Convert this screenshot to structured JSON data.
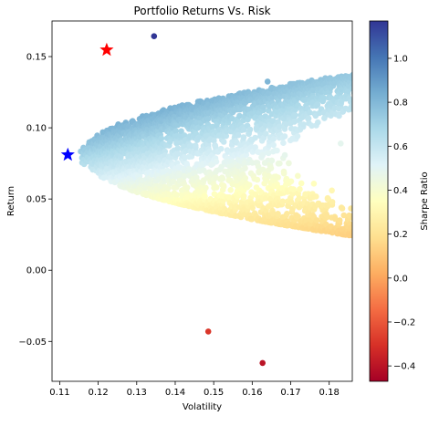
{
  "chart_data": {
    "type": "scatter",
    "title": "Portfolio Returns Vs. Risk",
    "xlabel": "Volatility",
    "ylabel": "Return",
    "xlim": [
      0.108,
      0.186
    ],
    "ylim": [
      -0.078,
      0.175
    ],
    "x_ticks": [
      0.11,
      0.12,
      0.13,
      0.14,
      0.15,
      0.16,
      0.17,
      0.18
    ],
    "x_tick_labels": [
      "0.11",
      "0.12",
      "0.13",
      "0.14",
      "0.15",
      "0.16",
      "0.17",
      "0.18"
    ],
    "y_ticks": [
      -0.05,
      0.0,
      0.05,
      0.1,
      0.15
    ],
    "y_tick_labels": [
      "−0.05",
      "0.00",
      "0.05",
      "0.10",
      "0.15"
    ],
    "grid": false,
    "colorbar": {
      "label": "Sharpe Ratio",
      "colormap": "RdYlBu",
      "range": [
        -0.47,
        1.17
      ],
      "ticks": [
        -0.4,
        -0.2,
        0.0,
        0.2,
        0.4,
        0.6,
        0.8,
        1.0
      ],
      "tick_labels": [
        "−0.4",
        "−0.2",
        "0.0",
        "0.2",
        "0.4",
        "0.6",
        "0.8",
        "1.0"
      ],
      "colors": [
        "#a50026",
        "#d73027",
        "#f46d43",
        "#fdae61",
        "#fee090",
        "#ffffbf",
        "#e0f3f8",
        "#abd9e9",
        "#74add1",
        "#4575b4",
        "#313695"
      ]
    },
    "highlight_points": [
      {
        "x": 0.1222,
        "y": 0.1547,
        "color": "#ff0000",
        "marker": "star"
      },
      {
        "x": 0.1121,
        "y": 0.081,
        "color": "#0000ff",
        "marker": "star"
      }
    ],
    "outliers": [
      {
        "x": 0.1627,
        "y": -0.0651
      },
      {
        "x": 0.1486,
        "y": -0.043
      },
      {
        "x": 0.1345,
        "y": 0.1643
      },
      {
        "x": 0.164,
        "y": 0.1325
      },
      {
        "x": 0.183,
        "y": 0.089
      },
      {
        "x": 0.1807,
        "y": 0.056
      }
    ],
    "risk_free_rate": 0.0,
    "min_volatility_envelope": 0.111,
    "approximate_point_count": 5000
  }
}
